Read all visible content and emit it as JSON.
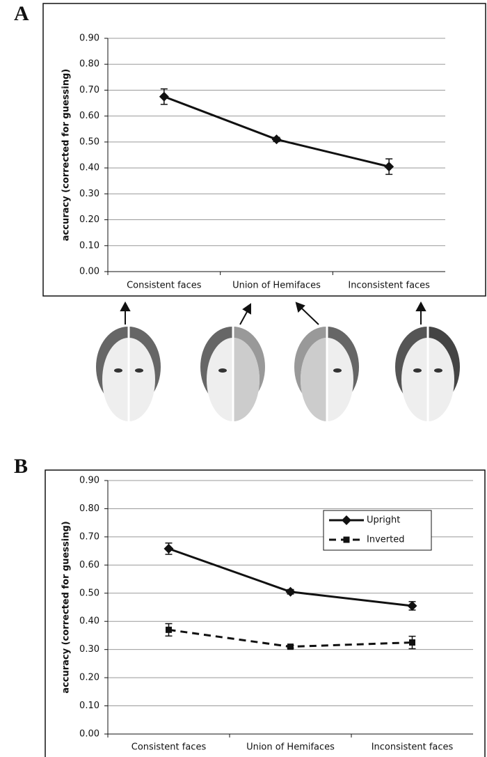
{
  "panels": [
    "A",
    "B"
  ],
  "chart_data": [
    {
      "type": "line",
      "ylabel": "accuracy (corrected for guessing)",
      "categories": [
        "Consistent faces",
        "Union of Hemifaces",
        "Inconsistent faces"
      ],
      "series": [
        {
          "color": "#111111",
          "linestyle": "solid",
          "marker": "diamond",
          "values": [
            0.675,
            0.51,
            0.405
          ],
          "errors": [
            0.03,
            0.008,
            0.03
          ]
        }
      ],
      "ylim": [
        0,
        0.9
      ],
      "yticks": [
        {
          "value": 0,
          "label": "0.00"
        },
        {
          "value": 0.1,
          "label": "0.10"
        },
        {
          "value": 0.2,
          "label": "0.20"
        },
        {
          "value": 0.3,
          "label": "0.30"
        },
        {
          "value": 0.4,
          "label": "0.40"
        },
        {
          "value": 0.5,
          "label": "0.50"
        },
        {
          "value": 0.6,
          "label": "0.60"
        },
        {
          "value": 0.7,
          "label": "0.70"
        },
        {
          "value": 0.8,
          "label": "0.80"
        },
        {
          "value": 0.9,
          "label": "0.90"
        }
      ],
      "grid": true
    },
    {
      "type": "line",
      "ylabel": "accuracy (corrected for guessing)",
      "categories": [
        "Consistent faces",
        "Union of Hemifaces",
        "Inconsistent faces"
      ],
      "series": [
        {
          "name": "Upright",
          "color": "#111111",
          "linestyle": "solid",
          "marker": "diamond",
          "values": [
            0.658,
            0.505,
            0.455
          ],
          "errors": [
            0.02,
            0.008,
            0.015
          ]
        },
        {
          "name": "Inverted",
          "color": "#111111",
          "linestyle": "dashed",
          "marker": "square",
          "values": [
            0.37,
            0.31,
            0.325
          ],
          "errors": [
            0.022,
            0.005,
            0.022
          ]
        }
      ],
      "ylim": [
        0,
        0.9
      ],
      "yticks": [
        {
          "value": 0,
          "label": "0.00"
        },
        {
          "value": 0.1,
          "label": "0.10"
        },
        {
          "value": 0.2,
          "label": "0.20"
        },
        {
          "value": 0.3,
          "label": "0.30"
        },
        {
          "value": 0.4,
          "label": "0.40"
        },
        {
          "value": 0.5,
          "label": "0.50"
        },
        {
          "value": 0.6,
          "label": "0.60"
        },
        {
          "value": 0.7,
          "label": "0.70"
        },
        {
          "value": 0.8,
          "label": "0.80"
        },
        {
          "value": 0.9,
          "label": "0.90"
        }
      ],
      "grid": true,
      "legend": "upper right"
    }
  ]
}
